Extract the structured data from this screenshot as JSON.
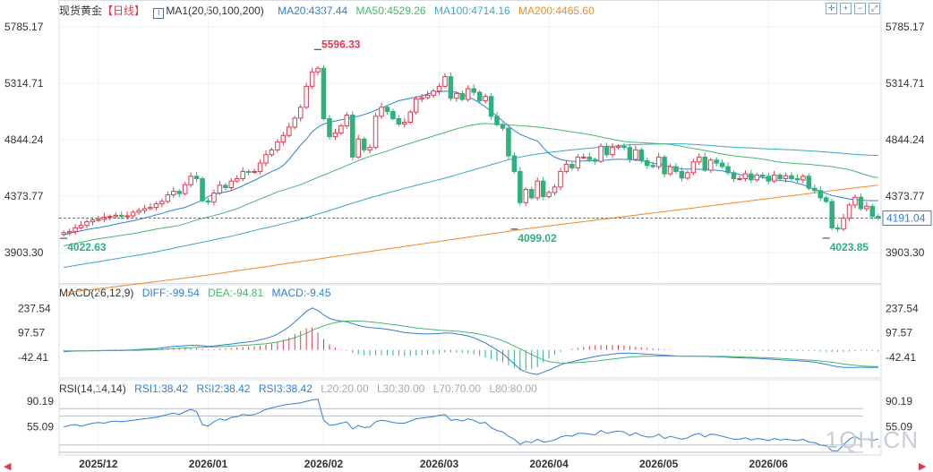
{
  "header": {
    "instrument": "现货黄金",
    "period": "【日线】",
    "ma_label": "MA1(20,50,100,200)",
    "ma20": "MA20:4337.44",
    "ma50": "MA50:4529.26",
    "ma100": "MA100:4714.16",
    "ma200": "MA200:4465.60"
  },
  "macd_header": {
    "label": "MACD(26,12,9)",
    "diff": "DIFF:-99.54",
    "dea": "DEA:-94.81",
    "macd": "MACD:-9.45"
  },
  "rsi_header": {
    "label": "RSI(14,14,14)",
    "rsi1": "RSI1:38.42",
    "rsi2": "RSI2:38.42",
    "rsi3": "RSI3:38.42",
    "l20": "L20:20.00",
    "l30": "L30:30.00",
    "l70": "L70:70.00",
    "l80": "L80:80.00"
  },
  "watermark": "1QH.CN",
  "colors": {
    "up": "#e0394f",
    "down": "#2fb07d",
    "ma20": "#2f7fd6",
    "ma50": "#45b86e",
    "ma100": "#3aa8c8",
    "ma200": "#f08a2a",
    "current": "#2f7fd6",
    "high_label": "#e0394f",
    "low_label": "#2fb07d"
  },
  "chart_data": {
    "type": "candlestick",
    "price_ylim": [
      3650,
      5860
    ],
    "price_ticks": [
      "5785.17",
      "5314.71",
      "4844.24",
      "4373.77",
      "3903.30"
    ],
    "x_ticks": [
      "2025/12",
      "2026/01",
      "2026/02",
      "2026/03",
      "2026/04",
      "2026/05",
      "2026/06"
    ],
    "x_tick_index": [
      6,
      25,
      45,
      65,
      84,
      103,
      122
    ],
    "current_price": "4191.04",
    "annotations": [
      {
        "label": "5596.33",
        "index": 44,
        "price": 5596.33
      },
      {
        "label": "4022.63",
        "index": 0,
        "price": 4022.63
      },
      {
        "label": "4099.02",
        "index": 78,
        "price": 4099.02
      },
      {
        "label": "4023.85",
        "index": 132,
        "price": 4023.85
      }
    ],
    "close": [
      4070,
      4080,
      4110,
      4130,
      4160,
      4175,
      4180,
      4200,
      4205,
      4215,
      4205,
      4210,
      4240,
      4255,
      4270,
      4280,
      4310,
      4330,
      4385,
      4415,
      4395,
      4470,
      4540,
      4520,
      4335,
      4325,
      4400,
      4465,
      4445,
      4500,
      4520,
      4580,
      4575,
      4580,
      4650,
      4720,
      4760,
      4825,
      4880,
      4950,
      5025,
      5115,
      5290,
      5410,
      5440,
      5020,
      4870,
      4900,
      4960,
      5050,
      4700,
      4850,
      4760,
      4780,
      5040,
      5115,
      5080,
      5020,
      4975,
      4990,
      5075,
      5185,
      5195,
      5215,
      5250,
      5290,
      5370,
      5190,
      5230,
      5180,
      5270,
      5240,
      5170,
      5205,
      5040,
      4970,
      4940,
      4710,
      4580,
      4320,
      4430,
      4360,
      4500,
      4370,
      4405,
      4450,
      4580,
      4640,
      4610,
      4700,
      4700,
      4680,
      4665,
      4790,
      4720,
      4780,
      4790,
      4780,
      4680,
      4760,
      4670,
      4630,
      4620,
      4700,
      4560,
      4620,
      4580,
      4525,
      4570,
      4660,
      4700,
      4590,
      4675,
      4650,
      4620,
      4570,
      4520,
      4520,
      4560,
      4510,
      4550,
      4540,
      4500,
      4550,
      4520,
      4545,
      4520,
      4510,
      4540,
      4440,
      4420,
      4360,
      4330,
      4110,
      4100,
      4190,
      4300,
      4365,
      4270,
      4290,
      4205,
      4191
    ],
    "ma20": [
      4050,
      4065,
      4075,
      4085,
      4095,
      4105,
      4110,
      4120,
      4130,
      4140,
      4150,
      4160,
      4170,
      4180,
      4192,
      4205,
      4218,
      4230,
      4245,
      4258,
      4270,
      4280,
      4300,
      4320,
      4340,
      4370,
      4390,
      4400,
      4410,
      4420,
      4440,
      4460,
      4485,
      4505,
      4530,
      4555,
      4580,
      4600,
      4630,
      4680,
      4740,
      4800,
      4850,
      4910,
      4950,
      4975,
      4990,
      5000,
      5010,
      5020,
      5030,
      5040,
      5055,
      5070,
      5090,
      5110,
      5130,
      5150,
      5170,
      5180,
      5190,
      5200,
      5210,
      5225,
      5240,
      5245,
      5250,
      5245,
      5240,
      5220,
      5200,
      5180,
      5150,
      5120,
      5080,
      5040,
      5000,
      4960,
      4920,
      4890,
      4870,
      4850,
      4835,
      4780,
      4730,
      4700,
      4680,
      4670,
      4665,
      4665,
      4668,
      4670,
      4670,
      4672,
      4675,
      4680,
      4682,
      4680,
      4678,
      4676,
      4670,
      4660,
      4650,
      4640,
      4632,
      4620,
      4610,
      4600,
      4600,
      4600,
      4598,
      4598,
      4595,
      4590,
      4585,
      4575,
      4565,
      4555,
      4545,
      4540,
      4535,
      4530,
      4520,
      4510,
      4505,
      4500,
      4495,
      4480,
      4470,
      4450,
      4430,
      4415,
      4395,
      4380,
      4370,
      4360,
      4350,
      4345,
      4340,
      4338,
      4337,
      4337
    ],
    "ma50": [
      3960,
      3970,
      3980,
      3990,
      4000,
      4010,
      4018,
      4026,
      4032,
      4040,
      4048,
      4055,
      4062,
      4070,
      4080,
      4090,
      4100,
      4108,
      4115,
      4122,
      4130,
      4145,
      4160,
      4175,
      4190,
      4200,
      4212,
      4225,
      4240,
      4255,
      4270,
      4290,
      4310,
      4330,
      4350,
      4370,
      4390,
      4410,
      4425,
      4440,
      4455,
      4470,
      4490,
      4510,
      4530,
      4550,
      4570,
      4590,
      4610,
      4630,
      4650,
      4670,
      4690,
      4705,
      4720,
      4735,
      4750,
      4768,
      4785,
      4800,
      4815,
      4830,
      4845,
      4860,
      4875,
      4890,
      4905,
      4920,
      4935,
      4948,
      4960,
      4970,
      4976,
      4980,
      4978,
      4975,
      4972,
      4968,
      4965,
      4962,
      4958,
      4955,
      4950,
      4945,
      4938,
      4932,
      4925,
      4918,
      4910,
      4902,
      4895,
      4888,
      4878,
      4868,
      4858,
      4848,
      4838,
      4830,
      4825,
      4822,
      4820,
      4818,
      4815,
      4812,
      4810,
      4805,
      4798,
      4790,
      4780,
      4772,
      4765,
      4755,
      4745,
      4735,
      4725,
      4718,
      4710,
      4705,
      4700,
      4695,
      4690,
      4683,
      4675,
      4665,
      4658,
      4652,
      4648,
      4645,
      4642,
      4640,
      4635,
      4630,
      4625,
      4620,
      4612,
      4605,
      4595,
      4580,
      4565,
      4550,
      4535,
      4529
    ],
    "ma100": [
      3780,
      3788,
      3796,
      3804,
      3812,
      3820,
      3828,
      3836,
      3844,
      3852,
      3860,
      3868,
      3876,
      3884,
      3892,
      3900,
      3910,
      3920,
      3930,
      3940,
      3950,
      3960,
      3970,
      3980,
      3990,
      4000,
      4010,
      4020,
      4030,
      4040,
      4052,
      4064,
      4076,
      4088,
      4100,
      4110,
      4120,
      4132,
      4144,
      4156,
      4168,
      4180,
      4195,
      4210,
      4225,
      4240,
      4255,
      4270,
      4285,
      4300,
      4315,
      4330,
      4345,
      4360,
      4373,
      4386,
      4400,
      4413,
      4426,
      4440,
      4452,
      4464,
      4476,
      4488,
      4500,
      4512,
      4524,
      4538,
      4552,
      4566,
      4580,
      4594,
      4608,
      4622,
      4636,
      4650,
      4664,
      4678,
      4690,
      4700,
      4710,
      4718,
      4725,
      4732,
      4738,
      4744,
      4750,
      4755,
      4760,
      4765,
      4770,
      4774,
      4778,
      4782,
      4786,
      4790,
      4794,
      4798,
      4801,
      4803,
      4805,
      4807,
      4808,
      4809,
      4810,
      4810,
      4810,
      4810,
      4808,
      4806,
      4803,
      4800,
      4796,
      4792,
      4788,
      4785,
      4782,
      4780,
      4778,
      4775,
      4773,
      4770,
      4768,
      4766,
      4764,
      4762,
      4760,
      4758,
      4755,
      4752,
      4749,
      4745,
      4742,
      4738,
      4734,
      4730,
      4726,
      4722,
      4719,
      4717,
      4715,
      4714
    ],
    "ma200": [
      3570,
      3575,
      3580,
      3585,
      3590,
      3596,
      3602,
      3608,
      3614,
      3620,
      3626,
      3632,
      3638,
      3644,
      3650,
      3656,
      3662,
      3668,
      3674,
      3680,
      3686,
      3692,
      3698,
      3704,
      3710,
      3717,
      3724,
      3731,
      3738,
      3745,
      3752,
      3759,
      3766,
      3773,
      3780,
      3787,
      3794,
      3801,
      3808,
      3815,
      3822,
      3829,
      3836,
      3843,
      3850,
      3857,
      3864,
      3871,
      3878,
      3885,
      3892,
      3899,
      3906,
      3913,
      3920,
      3927,
      3934,
      3941,
      3948,
      3955,
      3962,
      3969,
      3976,
      3983,
      3990,
      3997,
      4004,
      4011,
      4018,
      4025,
      4032,
      4039,
      4046,
      4053,
      4060,
      4067,
      4074,
      4081,
      4088,
      4095,
      4102,
      4108,
      4114,
      4120,
      4126,
      4132,
      4138,
      4144,
      4150,
      4156,
      4162,
      4168,
      4174,
      4180,
      4186,
      4192,
      4198,
      4204,
      4210,
      4216,
      4222,
      4228,
      4234,
      4240,
      4246,
      4252,
      4258,
      4264,
      4270,
      4276,
      4282,
      4288,
      4294,
      4300,
      4306,
      4312,
      4318,
      4324,
      4330,
      4336,
      4342,
      4348,
      4354,
      4360,
      4366,
      4372,
      4378,
      4384,
      4390,
      4396,
      4402,
      4408,
      4414,
      4420,
      4426,
      4432,
      4438,
      4444,
      4450,
      4455,
      4460,
      4465.6
    ],
    "macd_ylim": [
      -160,
      290
    ],
    "macd_ticks": [
      "237.54",
      "97.57",
      "-42.41"
    ],
    "macd_tick_values": [
      237.54,
      97.57,
      -42.41
    ],
    "macd_bar_indices": [
      0,
      141
    ],
    "diff": [
      -10,
      -8,
      -6,
      -5,
      -5,
      -4,
      -4,
      -3,
      -3,
      -2,
      -2,
      -1,
      0,
      2,
      4,
      6,
      8,
      12,
      16,
      20,
      22,
      24,
      26,
      26,
      24,
      20,
      22,
      26,
      30,
      34,
      38,
      42,
      46,
      50,
      58,
      66,
      76,
      90,
      110,
      132,
      160,
      190,
      220,
      240,
      225,
      200,
      180,
      170,
      165,
      160,
      150,
      140,
      132,
      128,
      125,
      122,
      118,
      112,
      106,
      100,
      96,
      94,
      92,
      92,
      92,
      94,
      96,
      96,
      92,
      86,
      80,
      70,
      55,
      40,
      20,
      0,
      -20,
      -50,
      -80,
      -110,
      -125,
      -135,
      -140,
      -128,
      -115,
      -100,
      -85,
      -75,
      -68,
      -60,
      -52,
      -45,
      -38,
      -32,
      -28,
      -24,
      -20,
      -18,
      -18,
      -20,
      -22,
      -24,
      -26,
      -28,
      -30,
      -32,
      -34,
      -35,
      -36,
      -36,
      -36,
      -37,
      -38,
      -39,
      -40,
      -42,
      -44,
      -45,
      -46,
      -47,
      -48,
      -50,
      -52,
      -54,
      -56,
      -58,
      -60,
      -62,
      -64,
      -66,
      -70,
      -76,
      -82,
      -90,
      -96,
      -99,
      -100,
      -100,
      -99,
      -99,
      -99.5,
      -99.54
    ],
    "dea": [
      -5,
      -5,
      -5,
      -5,
      -5,
      -5,
      -5,
      -4,
      -4,
      -4,
      -4,
      -3,
      -3,
      -2,
      -1,
      0,
      1,
      3,
      5,
      7,
      9,
      11,
      13,
      15,
      16,
      17,
      18,
      19,
      20,
      22,
      24,
      26,
      28,
      30,
      33,
      36,
      40,
      45,
      52,
      60,
      70,
      82,
      96,
      112,
      126,
      138,
      148,
      156,
      162,
      165,
      166,
      165,
      163,
      160,
      157,
      153,
      149,
      145,
      140,
      135,
      130,
      126,
      122,
      119,
      116,
      113,
      111,
      109,
      107,
      104,
      100,
      96,
      90,
      83,
      74,
      64,
      52,
      38,
      22,
      6,
      -10,
      -26,
      -42,
      -56,
      -66,
      -72,
      -74,
      -75,
      -74,
      -72,
      -70,
      -67,
      -64,
      -60,
      -56,
      -52,
      -48,
      -44,
      -41,
      -39,
      -37,
      -36,
      -35,
      -35,
      -35,
      -35,
      -35,
      -35,
      -35,
      -35,
      -35,
      -36,
      -36,
      -37,
      -37,
      -38,
      -39,
      -40,
      -41,
      -42,
      -43,
      -44,
      -45,
      -46,
      -48,
      -50,
      -52,
      -54,
      -56,
      -58,
      -60,
      -63,
      -66,
      -70,
      -75,
      -80,
      -84,
      -88,
      -91,
      -93,
      -94,
      -94.81
    ],
    "macd_hist": [
      -5,
      -3,
      -1,
      0,
      0,
      1,
      1,
      1,
      1,
      2,
      2,
      2,
      3,
      4,
      5,
      6,
      7,
      9,
      11,
      13,
      13,
      13,
      13,
      11,
      8,
      3,
      4,
      7,
      10,
      12,
      14,
      16,
      18,
      20,
      25,
      30,
      36,
      45,
      58,
      72,
      90,
      108,
      124,
      128,
      99,
      62,
      32,
      14,
      3,
      -5,
      -16,
      -25,
      -31,
      -32,
      -32,
      -31,
      -31,
      -33,
      -34,
      -35,
      -34,
      -32,
      -30,
      -27,
      -24,
      -19,
      -15,
      -13,
      -15,
      -18,
      -20,
      -26,
      -35,
      -43,
      -54,
      -64,
      -72,
      -88,
      -102,
      -116,
      -115,
      -109,
      -98,
      -72,
      -49,
      -28,
      -11,
      0,
      6,
      12,
      18,
      22,
      26,
      28,
      28,
      28,
      28,
      26,
      23,
      19,
      15,
      12,
      9,
      7,
      5,
      3,
      1,
      0,
      -1,
      -1,
      -1,
      -1,
      -2,
      -2,
      -3,
      -4,
      -5,
      -5,
      -5,
      -5,
      -5,
      -6,
      -6,
      -6,
      -6,
      -6,
      -6,
      -6,
      -6,
      -6,
      -7,
      -9,
      -10,
      -12,
      -12,
      -11,
      -9,
      -7,
      -5,
      -5,
      -6,
      -9.45
    ],
    "rsi_ylim": [
      20,
      100
    ],
    "rsi_ticks": [
      "90.19",
      "55.09"
    ],
    "rsi_tick_values": [
      90.19,
      55.09
    ],
    "rsi_levels": [
      20,
      30,
      70,
      80
    ],
    "rsi": [
      55,
      57,
      58,
      56,
      58,
      60,
      61,
      60,
      62,
      63,
      62,
      63,
      64,
      65,
      66,
      67,
      68,
      70,
      72,
      74,
      72,
      76,
      79,
      76,
      58,
      56,
      62,
      66,
      64,
      68,
      69,
      72,
      71,
      72,
      75,
      79,
      81,
      83,
      85,
      86,
      87,
      88,
      90,
      92,
      93,
      64,
      57,
      58,
      60,
      62,
      52,
      57,
      54,
      55,
      62,
      64,
      63,
      61,
      60,
      60,
      63,
      66,
      67,
      68,
      69,
      71,
      72,
      64,
      65,
      63,
      66,
      64,
      60,
      61,
      54,
      50,
      48,
      42,
      38,
      31,
      35,
      33,
      38,
      34,
      35,
      37,
      41,
      43,
      42,
      46,
      46,
      45,
      44,
      50,
      46,
      48,
      49,
      48,
      43,
      47,
      43,
      41,
      41,
      45,
      39,
      42,
      40,
      38,
      40,
      44,
      46,
      41,
      45,
      44,
      42,
      40,
      38,
      38,
      40,
      37,
      39,
      38,
      36,
      39,
      37,
      38,
      37,
      36,
      38,
      34,
      33,
      30,
      29,
      22,
      22,
      30,
      38,
      42,
      37,
      38,
      36,
      38.42
    ]
  }
}
